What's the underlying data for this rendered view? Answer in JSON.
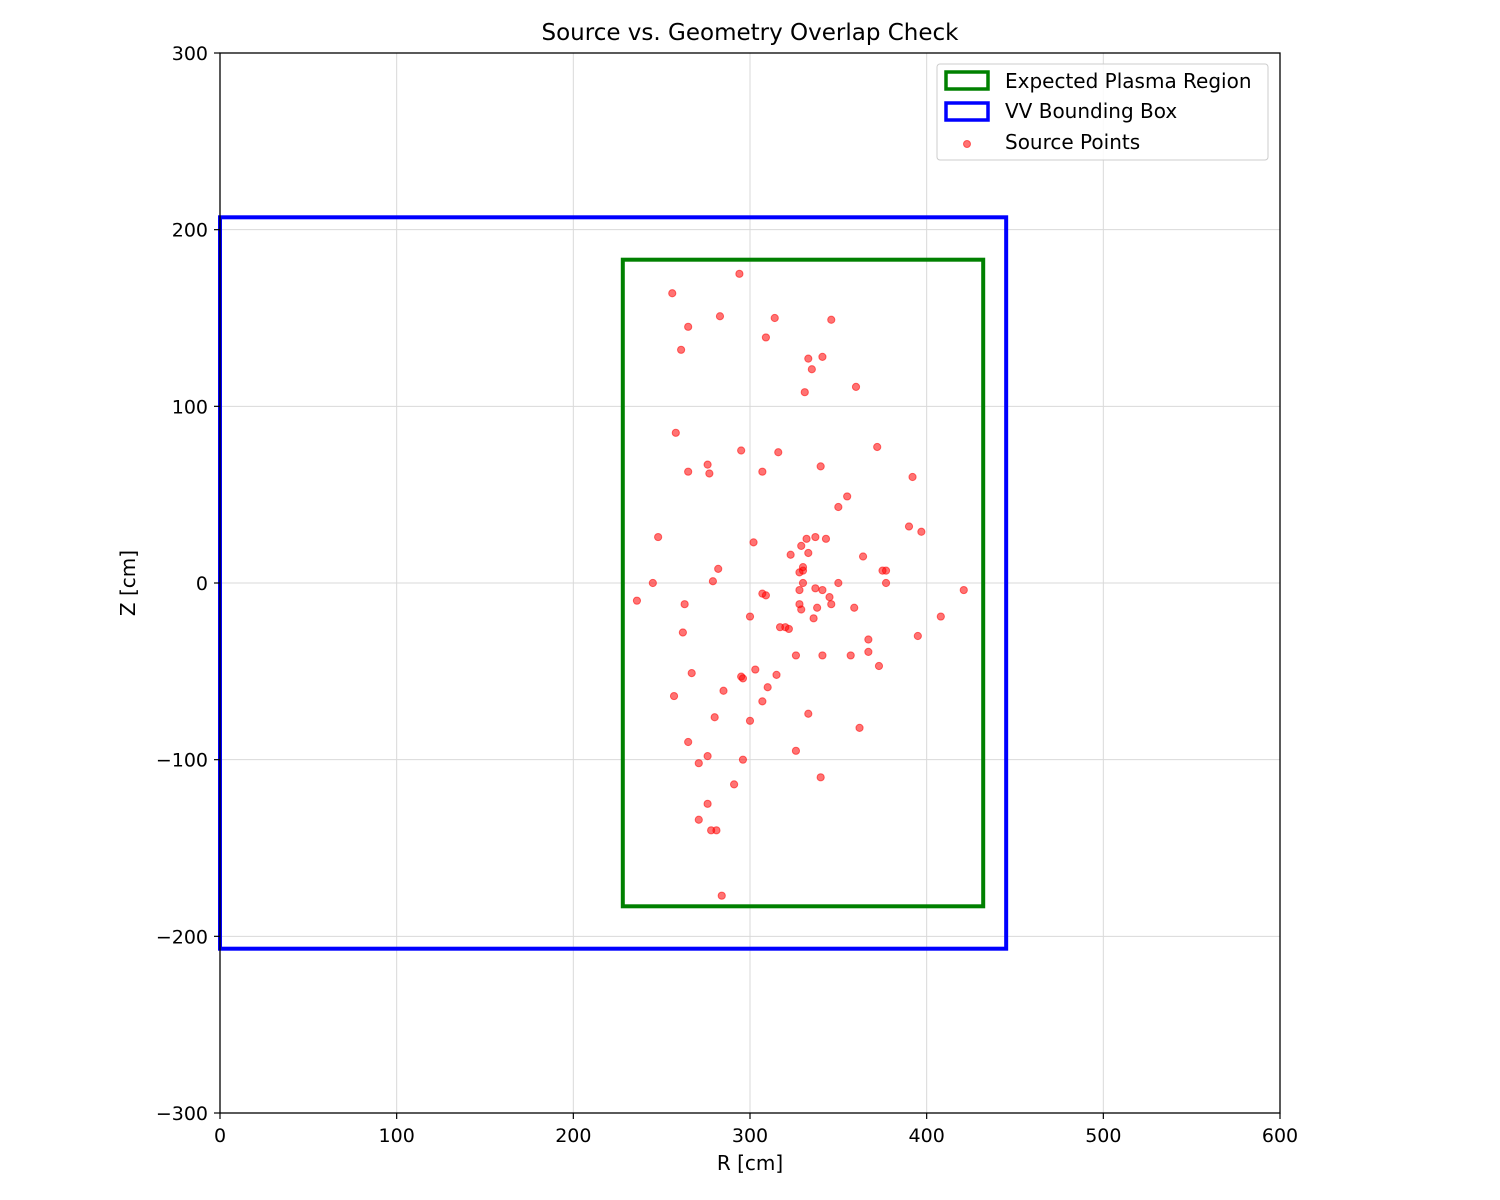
{
  "chart_data": {
    "type": "scatter",
    "title": "Source vs. Geometry Overlap Check",
    "xlabel": "R [cm]",
    "ylabel": "Z [cm]",
    "xlim": [
      0,
      600
    ],
    "ylim": [
      -300,
      300
    ],
    "xticks": [
      0,
      100,
      200,
      300,
      400,
      500,
      600
    ],
    "yticks": [
      -300,
      -200,
      -100,
      0,
      100,
      200,
      300
    ],
    "xtick_labels": [
      "0",
      "100",
      "200",
      "300",
      "400",
      "500",
      "600"
    ],
    "ytick_labels": [
      "−300",
      "−200",
      "−100",
      "0",
      "100",
      "200",
      "300"
    ],
    "grid": true,
    "legend_position": "top-right",
    "rectangles": [
      {
        "name": "Expected Plasma Region",
        "color": "#008000",
        "r_min": 228,
        "r_max": 432,
        "z_min": -183,
        "z_max": 183
      },
      {
        "name": "VV Bounding Box",
        "color": "#0000ff",
        "r_min": 0,
        "r_max": 445,
        "z_min": -207,
        "z_max": 207
      }
    ],
    "series": [
      {
        "name": "Source Points",
        "color": "#ff0000",
        "points": [
          [
            294,
            175
          ],
          [
            256,
            164
          ],
          [
            283,
            151
          ],
          [
            314,
            150
          ],
          [
            346,
            149
          ],
          [
            265,
            145
          ],
          [
            309,
            139
          ],
          [
            261,
            132
          ],
          [
            333,
            127
          ],
          [
            341,
            128
          ],
          [
            335,
            121
          ],
          [
            360,
            111
          ],
          [
            331,
            108
          ],
          [
            258,
            85
          ],
          [
            295,
            75
          ],
          [
            316,
            74
          ],
          [
            372,
            77
          ],
          [
            276,
            67
          ],
          [
            340,
            66
          ],
          [
            265,
            63
          ],
          [
            277,
            62
          ],
          [
            307,
            63
          ],
          [
            392,
            60
          ],
          [
            355,
            49
          ],
          [
            350,
            43
          ],
          [
            390,
            32
          ],
          [
            397,
            29
          ],
          [
            248,
            26
          ],
          [
            302,
            23
          ],
          [
            332,
            25
          ],
          [
            337,
            26
          ],
          [
            343,
            25
          ],
          [
            329,
            21
          ],
          [
            323,
            16
          ],
          [
            333,
            17
          ],
          [
            364,
            15
          ],
          [
            330,
            9
          ],
          [
            328,
            6
          ],
          [
            330,
            7
          ],
          [
            282,
            8
          ],
          [
            375,
            7
          ],
          [
            377,
            7
          ],
          [
            245,
            0
          ],
          [
            279,
            1
          ],
          [
            330,
            0
          ],
          [
            350,
            0
          ],
          [
            377,
            0
          ],
          [
            421,
            -4
          ],
          [
            328,
            -4
          ],
          [
            337,
            -3
          ],
          [
            341,
            -4
          ],
          [
            307,
            -6
          ],
          [
            309,
            -7
          ],
          [
            236,
            -10
          ],
          [
            345,
            -8
          ],
          [
            263,
            -12
          ],
          [
            328,
            -12
          ],
          [
            338,
            -14
          ],
          [
            346,
            -12
          ],
          [
            359,
            -14
          ],
          [
            329,
            -15
          ],
          [
            300,
            -19
          ],
          [
            336,
            -20
          ],
          [
            408,
            -19
          ],
          [
            317,
            -25
          ],
          [
            320,
            -25
          ],
          [
            322,
            -26
          ],
          [
            262,
            -28
          ],
          [
            367,
            -32
          ],
          [
            395,
            -30
          ],
          [
            326,
            -41
          ],
          [
            341,
            -41
          ],
          [
            357,
            -41
          ],
          [
            367,
            -39
          ],
          [
            373,
            -47
          ],
          [
            303,
            -49
          ],
          [
            267,
            -51
          ],
          [
            315,
            -52
          ],
          [
            295,
            -53
          ],
          [
            296,
            -54
          ],
          [
            310,
            -59
          ],
          [
            285,
            -61
          ],
          [
            257,
            -64
          ],
          [
            307,
            -67
          ],
          [
            280,
            -76
          ],
          [
            333,
            -74
          ],
          [
            300,
            -78
          ],
          [
            362,
            -82
          ],
          [
            265,
            -90
          ],
          [
            326,
            -95
          ],
          [
            276,
            -98
          ],
          [
            296,
            -100
          ],
          [
            271,
            -102
          ],
          [
            340,
            -110
          ],
          [
            291,
            -114
          ],
          [
            276,
            -125
          ],
          [
            271,
            -134
          ],
          [
            278,
            -140
          ],
          [
            281,
            -140
          ],
          [
            284,
            -177
          ]
        ]
      }
    ]
  }
}
